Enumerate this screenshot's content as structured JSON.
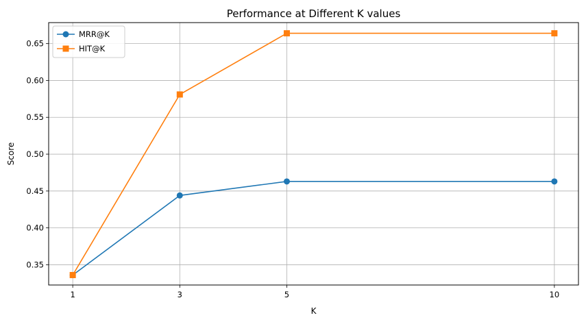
{
  "chart_data": {
    "type": "line",
    "title": "Performance at Different K values",
    "xlabel": "K",
    "ylabel": "Score",
    "x": [
      1,
      3,
      5,
      10
    ],
    "x_ticks": [
      "1",
      "3",
      "5",
      "10"
    ],
    "xlim": [
      0.55,
      10.45
    ],
    "ylim": [
      0.3225,
      0.6785
    ],
    "y_ticks": [
      "0.35",
      "0.40",
      "0.45",
      "0.50",
      "0.55",
      "0.60",
      "0.65"
    ],
    "grid": true,
    "legend_position": "top-left",
    "series": [
      {
        "name": "MRR@K",
        "color": "#1f77b4",
        "marker": "circle",
        "values": [
          0.336,
          0.444,
          0.463,
          0.463
        ]
      },
      {
        "name": "HIT@K",
        "color": "#ff7f0e",
        "marker": "square",
        "values": [
          0.336,
          0.581,
          0.664,
          0.664
        ]
      }
    ]
  }
}
